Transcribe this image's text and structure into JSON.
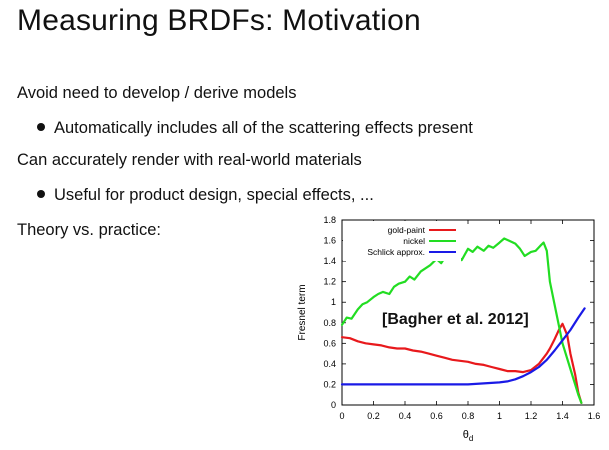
{
  "slide": {
    "title": "Measuring BRDFs: Motivation",
    "bullets": [
      "Avoid need to develop / derive models",
      "Automatically includes all of the scattering effects present",
      "Can accurately render with real-world materials",
      "Useful for product design, special effects, ...",
      "Theory vs. practice:"
    ]
  },
  "chart_data": {
    "type": "line",
    "xlabel": "θd",
    "ylabel": "Fresnel term",
    "xlim": [
      0,
      1.6
    ],
    "ylim": [
      0,
      1.8
    ],
    "xticks": [
      "0",
      "0.2",
      "0.4",
      "0.6",
      "0.8",
      "1",
      "1.2",
      "1.4",
      "1.6"
    ],
    "yticks": [
      "0",
      "0.2",
      "0.4",
      "0.6",
      "0.8",
      "1",
      "1.2",
      "1.4",
      "1.6",
      "1.8"
    ],
    "legend_position": "top-left",
    "annotation": "[Bagher et al. 2012]",
    "series": [
      {
        "name": "gold-paint",
        "color": "#e8191c",
        "x": [
          0,
          0.05,
          0.1,
          0.15,
          0.2,
          0.25,
          0.3,
          0.35,
          0.4,
          0.45,
          0.5,
          0.55,
          0.6,
          0.65,
          0.7,
          0.75,
          0.8,
          0.85,
          0.9,
          0.95,
          1.0,
          1.05,
          1.1,
          1.15,
          1.2,
          1.25,
          1.3,
          1.32,
          1.35,
          1.38,
          1.4,
          1.43,
          1.45,
          1.48,
          1.5,
          1.52
        ],
        "y": [
          0.66,
          0.65,
          0.62,
          0.6,
          0.59,
          0.58,
          0.56,
          0.55,
          0.55,
          0.53,
          0.52,
          0.5,
          0.48,
          0.46,
          0.44,
          0.43,
          0.42,
          0.4,
          0.39,
          0.37,
          0.35,
          0.33,
          0.33,
          0.32,
          0.34,
          0.4,
          0.5,
          0.55,
          0.64,
          0.74,
          0.79,
          0.68,
          0.5,
          0.3,
          0.12,
          0.02
        ]
      },
      {
        "name": "nickel",
        "color": "#22dd22",
        "x": [
          0,
          0.03,
          0.06,
          0.1,
          0.13,
          0.16,
          0.2,
          0.23,
          0.26,
          0.3,
          0.33,
          0.36,
          0.4,
          0.43,
          0.46,
          0.5,
          0.53,
          0.56,
          0.6,
          0.63,
          0.66,
          0.7,
          0.73,
          0.76,
          0.8,
          0.83,
          0.86,
          0.9,
          0.93,
          0.96,
          1.0,
          1.03,
          1.06,
          1.1,
          1.13,
          1.16,
          1.2,
          1.23,
          1.26,
          1.28,
          1.3,
          1.32,
          1.36,
          1.4,
          1.45,
          1.5,
          1.52
        ],
        "y": [
          0.78,
          0.85,
          0.84,
          0.93,
          0.98,
          1.0,
          1.05,
          1.08,
          1.1,
          1.08,
          1.15,
          1.18,
          1.2,
          1.25,
          1.22,
          1.3,
          1.33,
          1.36,
          1.42,
          1.38,
          1.45,
          1.5,
          1.46,
          1.41,
          1.52,
          1.49,
          1.54,
          1.5,
          1.55,
          1.53,
          1.58,
          1.62,
          1.6,
          1.57,
          1.52,
          1.45,
          1.49,
          1.5,
          1.55,
          1.58,
          1.5,
          1.2,
          0.9,
          0.6,
          0.35,
          0.1,
          0.02
        ]
      },
      {
        "name": "Schlick approx.",
        "color": "#1a1ae6",
        "x": [
          0,
          0.1,
          0.2,
          0.3,
          0.4,
          0.5,
          0.6,
          0.7,
          0.8,
          0.9,
          1.0,
          1.05,
          1.1,
          1.15,
          1.2,
          1.25,
          1.3,
          1.35,
          1.4,
          1.45,
          1.5,
          1.54
        ],
        "y": [
          0.2,
          0.2,
          0.2,
          0.2,
          0.2,
          0.2,
          0.2,
          0.2,
          0.2,
          0.21,
          0.22,
          0.23,
          0.25,
          0.28,
          0.32,
          0.37,
          0.44,
          0.53,
          0.63,
          0.73,
          0.85,
          0.94
        ]
      }
    ]
  }
}
